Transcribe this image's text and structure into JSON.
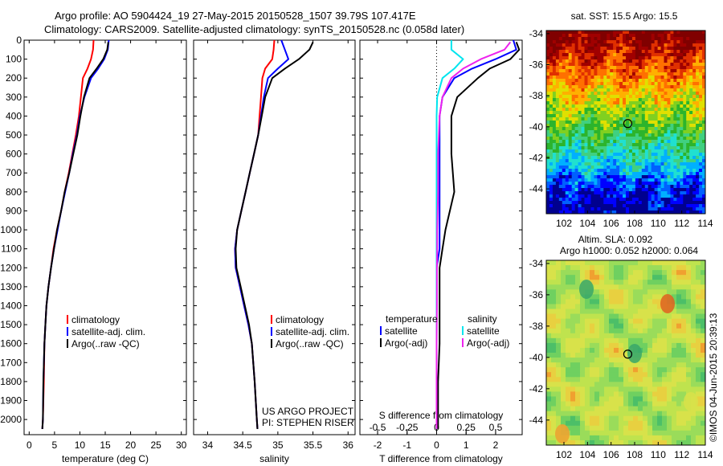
{
  "header": {
    "line1": "Argo profile: AO 5904424_19 27-May-2015 20150528_1507 39.79S 107.417E",
    "line2": "Climatology: CARS2009. Satellite-adjusted climatology: synTS_20150528.nc (0.058d later)"
  },
  "colors": {
    "climatology": "#ff0000",
    "satellite": "#0000ff",
    "argo": "#000000",
    "sat_salinity": "#00e5ee",
    "argo_salinity": "#ee22ee"
  },
  "depth_axis": {
    "ticks": [
      0,
      100,
      200,
      300,
      400,
      500,
      600,
      700,
      800,
      900,
      1000,
      1100,
      1200,
      1300,
      1400,
      1500,
      1600,
      1700,
      1800,
      1900,
      2000
    ],
    "range": [
      0,
      2080
    ],
    "inverted": true
  },
  "chart_data": [
    {
      "id": "temperature",
      "type": "line",
      "xlabel": "temperature (deg C)",
      "xlim": [
        -1,
        31
      ],
      "xticks": [
        0,
        5,
        10,
        15,
        20,
        25,
        30
      ],
      "legend": [
        "climatology",
        "satellite-adj. clim.",
        "Argo(..raw -QC)"
      ],
      "series": [
        {
          "name": "climatology",
          "color": "#ff0000",
          "x": [
            12.7,
            12.6,
            12.2,
            11.5,
            10.6,
            10.2,
            9.8,
            9.2,
            8.5,
            7.8,
            7.0,
            6.3,
            5.5,
            4.8,
            4.3,
            3.8,
            3.4,
            3.2,
            3.0,
            2.9,
            2.7,
            2.6
          ],
          "y": [
            0,
            50,
            100,
            150,
            200,
            300,
            400,
            500,
            600,
            700,
            800,
            900,
            1000,
            1100,
            1200,
            1300,
            1400,
            1500,
            1600,
            1800,
            2000,
            2050
          ]
        },
        {
          "name": "satellite-adj. clim.",
          "color": "#0000ff",
          "x": [
            15.7,
            15.5,
            14.8,
            13.6,
            12.2,
            10.9,
            10.0,
            9.4,
            8.6,
            7.9,
            7.1,
            6.3,
            5.6,
            4.9,
            4.3,
            3.8,
            3.4,
            3.2,
            3.0,
            2.8,
            2.7,
            2.6
          ],
          "y": [
            0,
            50,
            100,
            150,
            200,
            300,
            400,
            500,
            600,
            700,
            800,
            900,
            1000,
            1100,
            1200,
            1300,
            1400,
            1500,
            1600,
            1800,
            2000,
            2050
          ]
        },
        {
          "name": "Argo(..raw -QC)",
          "color": "#000000",
          "x": [
            15.6,
            15.4,
            14.6,
            13.3,
            11.9,
            10.8,
            10.1,
            9.5,
            8.7,
            7.9,
            7.0,
            6.3,
            5.5,
            4.9,
            4.3,
            3.8,
            3.4,
            3.2,
            3.0,
            2.8,
            2.7,
            2.6
          ],
          "y": [
            10,
            50,
            100,
            150,
            200,
            300,
            400,
            500,
            600,
            700,
            800,
            900,
            1000,
            1100,
            1200,
            1300,
            1400,
            1500,
            1600,
            1800,
            2000,
            2050
          ]
        }
      ]
    },
    {
      "id": "salinity",
      "type": "line",
      "xlabel": "salinity",
      "xlim": [
        33.8,
        36.1
      ],
      "xticks": [
        34,
        34.5,
        35,
        35.5,
        36
      ],
      "xticklabels": [
        "34",
        "34.5",
        "35",
        "35.5",
        "36"
      ],
      "legend": [
        "climatology",
        "satellite-adj. clim.",
        "Argo(..raw -QC)"
      ],
      "series": [
        {
          "name": "climatology",
          "color": "#ff0000",
          "x": [
            34.95,
            34.94,
            34.92,
            34.82,
            34.78,
            34.76,
            34.74,
            34.72,
            34.66,
            34.6,
            34.54,
            34.48,
            34.42,
            34.39,
            34.4,
            34.46,
            34.52,
            34.58,
            34.63,
            34.67,
            34.7,
            34.71
          ],
          "y": [
            0,
            50,
            100,
            150,
            200,
            300,
            400,
            500,
            600,
            700,
            800,
            900,
            1000,
            1100,
            1200,
            1300,
            1400,
            1500,
            1600,
            1800,
            2000,
            2050
          ]
        },
        {
          "name": "satellite-adj. clim.",
          "color": "#0000ff",
          "x": [
            35.05,
            35.1,
            35.15,
            35.0,
            34.86,
            34.8,
            34.76,
            34.72,
            34.66,
            34.6,
            34.54,
            34.48,
            34.42,
            34.39,
            34.4,
            34.46,
            34.52,
            34.58,
            34.63,
            34.67,
            34.7,
            34.71
          ],
          "y": [
            0,
            50,
            100,
            150,
            200,
            300,
            400,
            500,
            600,
            700,
            800,
            900,
            1000,
            1100,
            1200,
            1300,
            1400,
            1500,
            1600,
            1800,
            2000,
            2050
          ]
        },
        {
          "name": "Argo(..raw -QC)",
          "color": "#000000",
          "x": [
            35.5,
            35.45,
            35.3,
            35.1,
            34.92,
            34.82,
            34.77,
            34.72,
            34.66,
            34.6,
            34.54,
            34.48,
            34.42,
            34.4,
            34.41,
            34.47,
            34.53,
            34.59,
            34.63,
            34.67,
            34.7,
            34.71
          ],
          "y": [
            10,
            50,
            100,
            150,
            200,
            300,
            400,
            500,
            600,
            700,
            800,
            900,
            1000,
            1100,
            1200,
            1300,
            1400,
            1500,
            1600,
            1800,
            2000,
            2050
          ]
        }
      ],
      "annotation": [
        "US ARGO PROJECT",
        "PI: STEPHEN RISER"
      ]
    },
    {
      "id": "differences",
      "type": "line",
      "xlabel": "T difference from climatology",
      "xlabel_top": "S difference from climatology",
      "xlim": [
        -2.6,
        2.9
      ],
      "xticks": [
        -2,
        -1,
        0,
        1,
        2
      ],
      "xticks_top": [
        -0.5,
        -0.25,
        0,
        0.25,
        0.5
      ],
      "xticklabels_top": [
        "-0.5",
        "-0.25",
        "0",
        "0.25",
        "0.5"
      ],
      "legend_headings": [
        "temperature",
        "salinity"
      ],
      "legend": [
        "satellite",
        "Argo(-adj)",
        "satellite",
        "Argo(-adj)"
      ],
      "series": [
        {
          "name": "temperature satellite",
          "color": "#0000ff",
          "x": [
            2.6,
            2.7,
            2.0,
            1.2,
            0.6,
            0.2,
            0.1,
            0.1,
            0.1,
            0.1,
            0.1,
            0.0,
            0.0,
            0.0,
            0.0,
            0.0,
            0.0,
            0.0
          ],
          "y": [
            0,
            50,
            100,
            150,
            200,
            300,
            400,
            600,
            800,
            1000,
            1100,
            1200,
            1300,
            1400,
            1600,
            1800,
            2000,
            2050
          ]
        },
        {
          "name": "temperature Argo(-adj)",
          "color": "#000000",
          "x": [
            2.7,
            2.8,
            2.5,
            1.8,
            1.4,
            0.7,
            0.5,
            0.5,
            0.6,
            0.3,
            0.2,
            0.1,
            0.1,
            0.1,
            0.1,
            0.05,
            0.05,
            0.05
          ],
          "y": [
            10,
            50,
            100,
            150,
            200,
            300,
            400,
            600,
            800,
            1000,
            1100,
            1200,
            1300,
            1400,
            1600,
            1800,
            2000,
            2050
          ]
        },
        {
          "name": "salinity satellite",
          "color": "#00e5ee",
          "x": [
            0.5,
            0.5,
            0.9,
            0.6,
            0.2,
            0.02,
            0.0,
            0.0,
            0.0,
            0.0,
            0.0,
            0.0,
            0.0,
            0.0,
            0.0,
            0.0,
            0.0,
            0.0
          ],
          "y": [
            0,
            50,
            100,
            150,
            200,
            300,
            400,
            600,
            800,
            1000,
            1100,
            1200,
            1300,
            1400,
            1600,
            1800,
            2000,
            2050
          ]
        },
        {
          "name": "salinity Argo(-adj)",
          "color": "#ee22ee",
          "x": [
            2.5,
            2.3,
            1.5,
            0.9,
            0.5,
            0.2,
            0.1,
            0.05,
            0.05,
            0.02,
            0.02,
            0.01,
            0.01,
            0.01,
            0.0,
            0.0,
            0.0,
            0.0
          ],
          "y": [
            10,
            50,
            100,
            150,
            200,
            300,
            400,
            600,
            800,
            1000,
            1100,
            1200,
            1300,
            1400,
            1600,
            1800,
            2000,
            2050
          ]
        }
      ]
    },
    {
      "id": "sst_map",
      "type": "heatmap",
      "title": "sat. SST: 15.5 Argo: 15.5",
      "xlim": [
        100.5,
        114
      ],
      "ylim": [
        -45.6,
        -33.8
      ],
      "xticks": [
        102,
        104,
        106,
        108,
        110,
        112,
        114
      ],
      "yticks": [
        -34,
        -36,
        -38,
        -40,
        -42,
        -44
      ],
      "marker": {
        "lon": 107.417,
        "lat": -39.79
      }
    },
    {
      "id": "sla_map",
      "type": "heatmap",
      "title_line1": "Altim. SLA: 0.092",
      "title_line2": "Argo h1000: 0.052 h2000: 0.064",
      "xlim": [
        100.5,
        114
      ],
      "ylim": [
        -45.6,
        -33.8
      ],
      "xticks": [
        102,
        104,
        106,
        108,
        110,
        112,
        114
      ],
      "yticks": [
        -34,
        -36,
        -38,
        -40,
        -42,
        -44
      ],
      "marker": {
        "lon": 107.417,
        "lat": -39.79
      }
    }
  ],
  "footer_credit": "©IMOS 04-Jun-2015 20:39:13"
}
